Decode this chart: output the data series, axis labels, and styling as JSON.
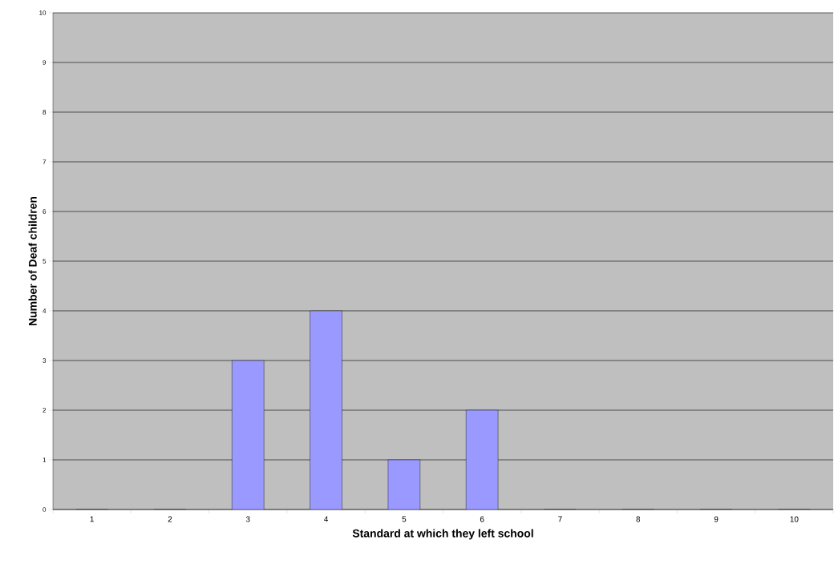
{
  "chart_data": {
    "type": "bar",
    "xlabel": "Standard at which they left school",
    "ylabel": "Number of Deaf children",
    "categories": [
      "1",
      "2",
      "3",
      "4",
      "5",
      "6",
      "7",
      "8",
      "9",
      "10"
    ],
    "values": [
      0,
      0,
      3,
      4,
      1,
      2,
      0,
      0,
      0,
      0
    ],
    "color": "#9999ff",
    "ylim": [
      0,
      10
    ],
    "yticks": [
      0,
      1,
      2,
      3,
      4,
      5,
      6,
      7,
      8,
      9,
      10
    ],
    "grid": "y"
  }
}
